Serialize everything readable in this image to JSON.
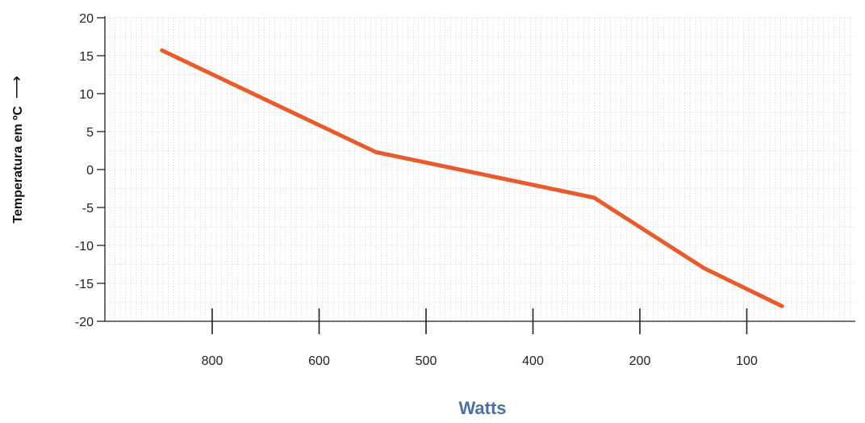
{
  "chart_data": {
    "type": "line",
    "xlabel": "Watts",
    "ylabel": "Temperatura em ºC",
    "ylabel_arrow": "⟶",
    "categories": [
      "800",
      "600",
      "500",
      "400",
      "200",
      "100"
    ],
    "yticks": [
      20,
      15,
      10,
      5,
      0,
      -5,
      -10,
      -15,
      -20
    ],
    "ylim": [
      -20,
      20
    ],
    "grid": true,
    "series": [
      {
        "points": [
          {
            "x": 0.53,
            "y": 15.7
          },
          {
            "x": 2.53,
            "y": 2.3
          },
          {
            "x": 4.57,
            "y": -3.7
          },
          {
            "x": 5.6,
            "y": -13.0
          },
          {
            "x": 6.33,
            "y": -18.0
          }
        ]
      }
    ],
    "colors": {
      "line": "#EA5B2C",
      "xlabel": "#4A6FA5",
      "axis": "#222222",
      "grid": "#c8c8c8"
    }
  }
}
